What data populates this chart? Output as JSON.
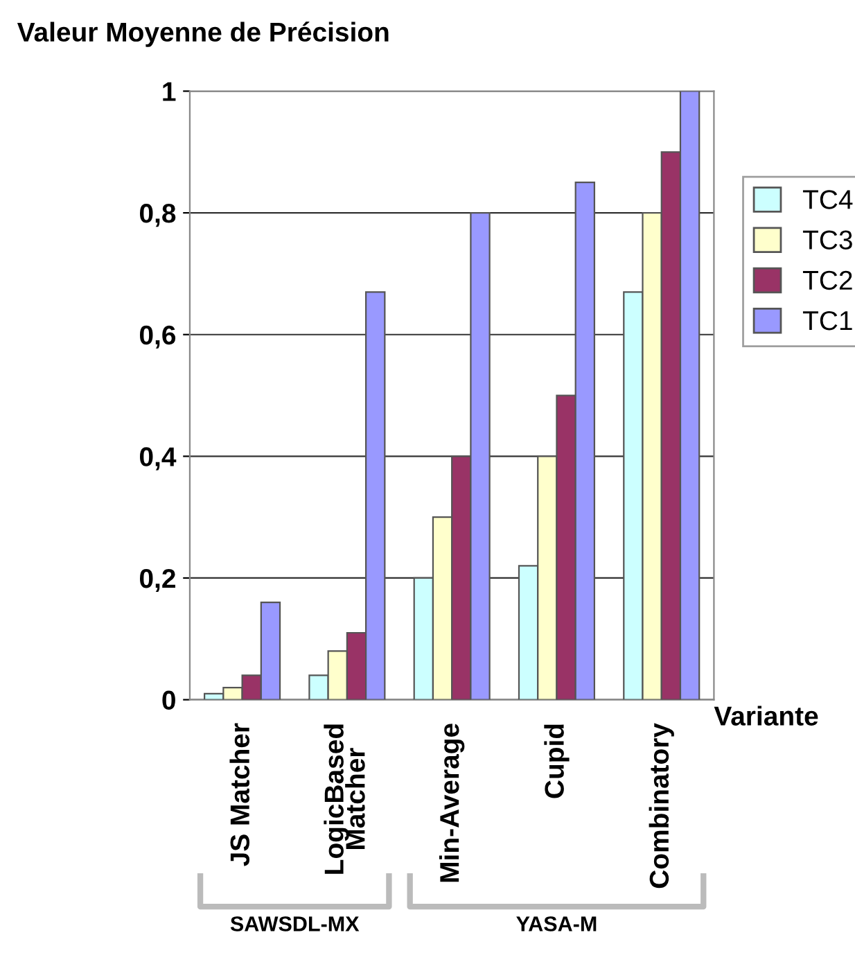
{
  "chart_data": {
    "type": "bar",
    "ylabel": "Valeur Moyenne de Précision",
    "xlabel": "Variante",
    "categories": [
      "JS Matcher",
      "LogicBased\nMatcher",
      "Min-Average",
      "Cupid",
      "Combinatory"
    ],
    "series": [
      {
        "name": "TC4",
        "color": "#ccffff",
        "values": [
          0.01,
          0.04,
          0.2,
          0.22,
          0.67
        ]
      },
      {
        "name": "TC3",
        "color": "#ffffcc",
        "values": [
          0.02,
          0.08,
          0.3,
          0.4,
          0.8
        ]
      },
      {
        "name": "TC2",
        "color": "#993366",
        "values": [
          0.04,
          0.11,
          0.4,
          0.5,
          0.9
        ]
      },
      {
        "name": "TC1",
        "color": "#9999ff",
        "values": [
          0.16,
          0.67,
          0.8,
          0.85,
          1.0
        ]
      }
    ],
    "ylim": [
      0,
      1
    ],
    "yticks": [
      0,
      {
        "value": 0.2,
        "label": "0,2"
      },
      {
        "value": 0.4,
        "label": "0,4"
      },
      {
        "value": 0.6,
        "label": "0,6"
      },
      {
        "value": 0.8,
        "label": "0,8"
      },
      1
    ],
    "grid": "y",
    "legend": "right",
    "annotations": [
      "SAWSDL-MX",
      "YASA-M"
    ]
  }
}
